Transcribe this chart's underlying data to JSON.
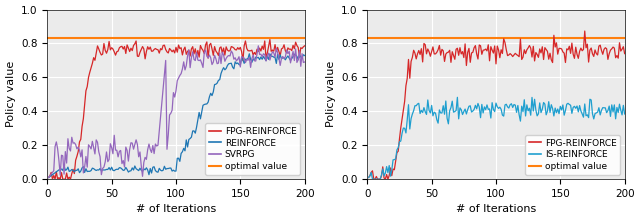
{
  "optimal_value": 0.833,
  "n_iterations": 200,
  "xlabel": "# of Iterations",
  "ylabel": "Policy value",
  "ylim": [
    0.0,
    1.0
  ],
  "xlim": [
    0,
    200
  ],
  "yticks": [
    0.0,
    0.2,
    0.4,
    0.6,
    0.8,
    1.0
  ],
  "xticks": [
    0,
    50,
    100,
    150,
    200
  ],
  "colors": {
    "FPG-REINFORCE": "#d62728",
    "REINFORCE": "#1f77b4",
    "SVRPG": "#9467bd",
    "IS-REINFORCE": "#1f9fcf",
    "optimal": "#ff7f0e"
  },
  "background_color": "#ebebeb",
  "grid_color": "#ffffff",
  "figsize": [
    6.4,
    2.2
  ],
  "dpi": 100
}
